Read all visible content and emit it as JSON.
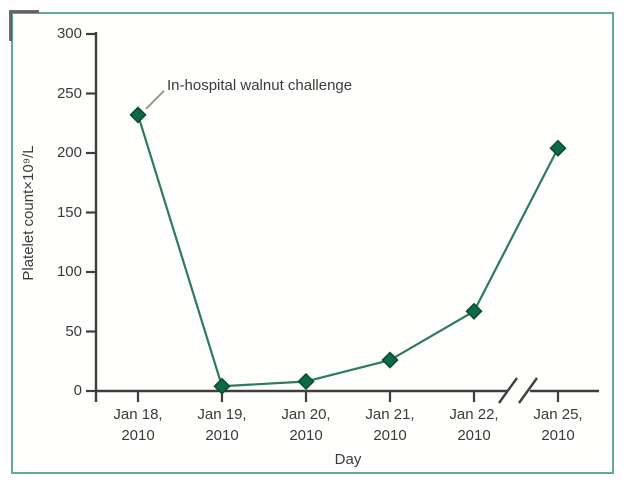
{
  "figure": {
    "frame_border_color": "#62a99b",
    "background_color": "#fefefd",
    "corner_mark_color": "#515151"
  },
  "chart_data": {
    "type": "line",
    "title": "",
    "xlabel": "Day",
    "ylabel": "Platelet count×10⁹/L",
    "ylim": [
      0,
      300
    ],
    "yticks": [
      0,
      50,
      100,
      150,
      200,
      250,
      300
    ],
    "categories": [
      "Jan 18, 2010",
      "Jan 19, 2010",
      "Jan 20, 2010",
      "Jan 21, 2010",
      "Jan 22, 2010",
      "Jan 25, 2010"
    ],
    "tick_label_lines": [
      [
        "Jan 18,",
        "2010"
      ],
      [
        "Jan 19,",
        "2010"
      ],
      [
        "Jan 20,",
        "2010"
      ],
      [
        "Jan 21,",
        "2010"
      ],
      [
        "Jan 22,",
        "2010"
      ],
      [
        "Jan 25,",
        "2010"
      ]
    ],
    "series": [
      {
        "name": "Platelet count",
        "values": [
          232,
          4,
          8,
          26,
          67,
          204
        ],
        "marker": "diamond"
      }
    ],
    "axis_break": {
      "between_categories": [
        "Jan 22, 2010",
        "Jan 25, 2010"
      ],
      "between_indices": [
        4,
        5
      ]
    },
    "annotation": {
      "text": "In-hospital walnut challenge",
      "points_to_category": "Jan 18, 2010",
      "points_to_index": 0
    },
    "grid": false,
    "legend": false,
    "colors": {
      "line": "#2d7a60",
      "marker_fill": "#0d6a44",
      "marker_edge": "#0a4a31",
      "axis": "#3e3e3e",
      "text": "#3b3b3b",
      "leader_line": "#8f8f8f"
    }
  }
}
